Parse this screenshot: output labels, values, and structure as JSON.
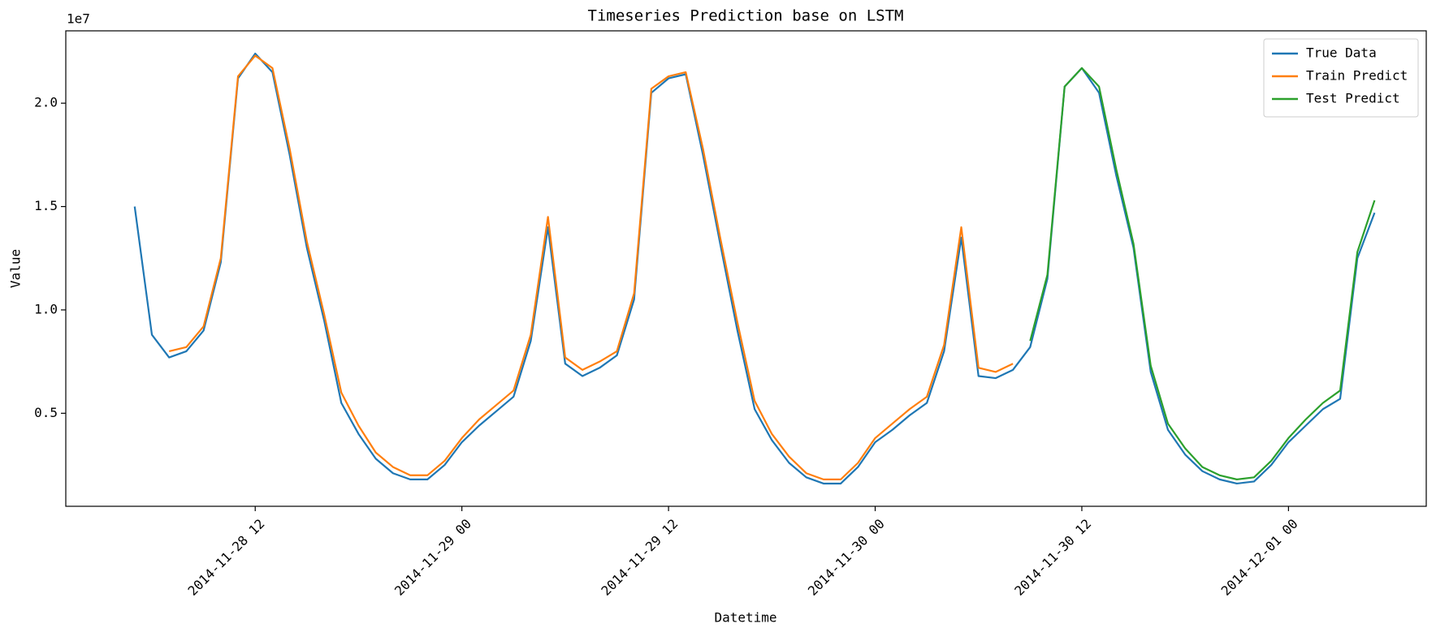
{
  "chart_data": {
    "type": "line",
    "title": "Timeseries Prediction base on LSTM",
    "x_label": "Datetime",
    "y_label": "Value",
    "y_offset_label": "1e7",
    "legend": "upper right",
    "x": [
      "2014-11-28 05",
      "2014-11-28 06",
      "2014-11-28 07",
      "2014-11-28 08",
      "2014-11-28 09",
      "2014-11-28 10",
      "2014-11-28 11",
      "2014-11-28 12",
      "2014-11-28 13",
      "2014-11-28 14",
      "2014-11-28 15",
      "2014-11-28 16",
      "2014-11-28 17",
      "2014-11-28 18",
      "2014-11-28 19",
      "2014-11-28 20",
      "2014-11-28 21",
      "2014-11-28 22",
      "2014-11-28 23",
      "2014-11-29 00",
      "2014-11-29 01",
      "2014-11-29 02",
      "2014-11-29 03",
      "2014-11-29 04",
      "2014-11-29 05",
      "2014-11-29 06",
      "2014-11-29 07",
      "2014-11-29 08",
      "2014-11-29 09",
      "2014-11-29 10",
      "2014-11-29 11",
      "2014-11-29 12",
      "2014-11-29 13",
      "2014-11-29 14",
      "2014-11-29 15",
      "2014-11-29 16",
      "2014-11-29 17",
      "2014-11-29 18",
      "2014-11-29 19",
      "2014-11-29 20",
      "2014-11-29 21",
      "2014-11-29 22",
      "2014-11-29 23",
      "2014-11-30 00",
      "2014-11-30 01",
      "2014-11-30 02",
      "2014-11-30 03",
      "2014-11-30 04",
      "2014-11-30 05",
      "2014-11-30 06",
      "2014-11-30 07",
      "2014-11-30 08",
      "2014-11-30 09",
      "2014-11-30 10",
      "2014-11-30 11",
      "2014-11-30 12",
      "2014-11-30 13",
      "2014-11-30 14",
      "2014-11-30 15",
      "2014-11-30 16",
      "2014-11-30 17",
      "2014-11-30 18",
      "2014-11-30 19",
      "2014-11-30 20",
      "2014-11-30 21",
      "2014-11-30 22",
      "2014-11-30 23",
      "2014-12-01 00",
      "2014-12-01 01",
      "2014-12-01 02",
      "2014-12-01 03",
      "2014-12-01 04",
      "2014-12-01 05"
    ],
    "series": [
      {
        "name": "True Data",
        "color": "#1f77b4",
        "values": [
          1.5,
          0.88,
          0.77,
          0.8,
          0.9,
          1.23,
          2.12,
          2.24,
          2.15,
          1.75,
          1.3,
          0.95,
          0.55,
          0.4,
          0.28,
          0.21,
          0.18,
          0.18,
          0.25,
          0.36,
          0.44,
          0.51,
          0.58,
          0.85,
          1.4,
          0.74,
          0.68,
          0.72,
          0.78,
          1.05,
          2.05,
          2.12,
          2.14,
          1.75,
          1.32,
          0.9,
          0.52,
          0.37,
          0.26,
          0.19,
          0.16,
          0.16,
          0.24,
          0.36,
          0.42,
          0.49,
          0.55,
          0.8,
          1.35,
          0.68,
          0.67,
          0.71,
          0.82,
          1.15,
          2.08,
          2.17,
          2.05,
          1.65,
          1.3,
          0.7,
          0.42,
          0.3,
          0.22,
          0.18,
          0.16,
          0.17,
          0.25,
          0.36,
          0.44,
          0.52,
          0.57,
          1.25,
          1.47
        ]
      },
      {
        "name": "Train Predict",
        "color": "#ff7f0e",
        "values": [
          null,
          null,
          0.8,
          0.82,
          0.92,
          1.25,
          2.13,
          2.23,
          2.17,
          1.78,
          1.33,
          0.98,
          0.6,
          0.44,
          0.31,
          0.24,
          0.2,
          0.2,
          0.27,
          0.38,
          0.47,
          0.54,
          0.61,
          0.88,
          1.45,
          0.77,
          0.71,
          0.75,
          0.8,
          1.08,
          2.07,
          2.13,
          2.15,
          1.78,
          1.35,
          0.94,
          0.56,
          0.4,
          0.29,
          0.21,
          0.18,
          0.18,
          0.26,
          0.38,
          0.45,
          0.52,
          0.58,
          0.83,
          1.4,
          0.72,
          0.7,
          0.74,
          null,
          null,
          null,
          null,
          null,
          null,
          null,
          null,
          null,
          null,
          null,
          null,
          null,
          null,
          null,
          null,
          null,
          null,
          null,
          null,
          null
        ]
      },
      {
        "name": "Test Predict",
        "color": "#2ca02c",
        "values": [
          null,
          null,
          null,
          null,
          null,
          null,
          null,
          null,
          null,
          null,
          null,
          null,
          null,
          null,
          null,
          null,
          null,
          null,
          null,
          null,
          null,
          null,
          null,
          null,
          null,
          null,
          null,
          null,
          null,
          null,
          null,
          null,
          null,
          null,
          null,
          null,
          null,
          null,
          null,
          null,
          null,
          null,
          null,
          null,
          null,
          null,
          null,
          null,
          null,
          null,
          null,
          null,
          0.85,
          1.17,
          2.08,
          2.17,
          2.08,
          1.68,
          1.32,
          0.73,
          0.45,
          0.33,
          0.24,
          0.2,
          0.18,
          0.19,
          0.27,
          0.38,
          0.47,
          0.55,
          0.61,
          1.28,
          1.53
        ]
      }
    ],
    "xlim": [
      "2014-11-28 01",
      "2014-12-01 08"
    ],
    "xticks": [
      "2014-11-28 12",
      "2014-11-29 00",
      "2014-11-29 12",
      "2014-11-30 00",
      "2014-11-30 12",
      "2014-12-01 00"
    ],
    "ylim": [
      0.05,
      2.35
    ],
    "yticks": [
      0.5,
      {
        "value": 1,
        "label": "1.0"
      },
      1.5,
      {
        "value": 2,
        "label": "2.0"
      }
    ],
    "grid": false
  }
}
